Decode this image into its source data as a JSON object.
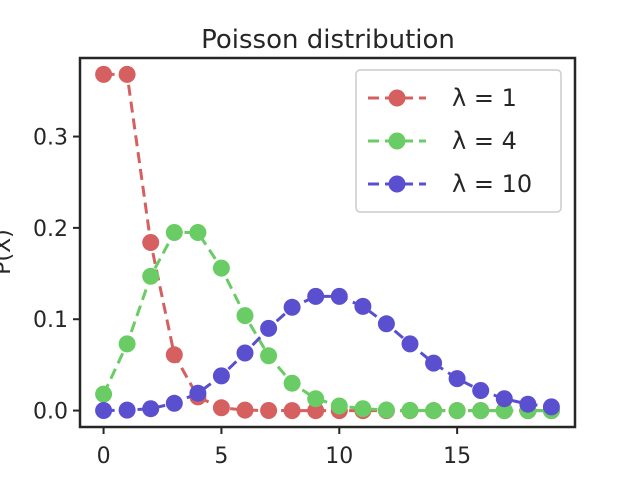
{
  "chart_data": {
    "type": "line",
    "title": "Poisson distribution",
    "xlabel": "",
    "ylabel": "P(X)",
    "xlim": [
      -1,
      20
    ],
    "ylim": [
      -0.018,
      0.386
    ],
    "xticks": [
      0,
      5,
      10,
      15
    ],
    "yticks": [
      0.0,
      0.1,
      0.2,
      0.3
    ],
    "xtick_labels": [
      "0",
      "5",
      "10",
      "15"
    ],
    "ytick_labels": [
      "0.0",
      "0.1",
      "0.2",
      "0.3"
    ],
    "grid": false,
    "legend_position": "top-right",
    "x": [
      0,
      1,
      2,
      3,
      4,
      5,
      6,
      7,
      8,
      9,
      10,
      11,
      12,
      13,
      14,
      15,
      16,
      17,
      18,
      19
    ],
    "series": [
      {
        "name": "λ = 1",
        "color": "#d65f5f",
        "values": [
          0.368,
          0.368,
          0.184,
          0.061,
          0.015,
          0.003,
          0.0005,
          0.0001,
          0,
          0,
          0,
          0,
          0,
          0,
          0,
          0,
          0,
          0,
          0,
          0
        ]
      },
      {
        "name": "λ = 4",
        "color": "#6acc64",
        "values": [
          0.018,
          0.073,
          0.147,
          0.195,
          0.195,
          0.156,
          0.104,
          0.06,
          0.03,
          0.013,
          0.005,
          0.002,
          0.0006,
          0.0002,
          0,
          0,
          0,
          0,
          0,
          0
        ]
      },
      {
        "name": "λ = 10",
        "color": "#5a4fcf",
        "values": [
          5e-05,
          0.0005,
          0.002,
          0.008,
          0.019,
          0.038,
          0.063,
          0.09,
          0.113,
          0.125,
          0.125,
          0.114,
          0.095,
          0.073,
          0.052,
          0.035,
          0.022,
          0.013,
          0.007,
          0.004
        ]
      }
    ]
  }
}
